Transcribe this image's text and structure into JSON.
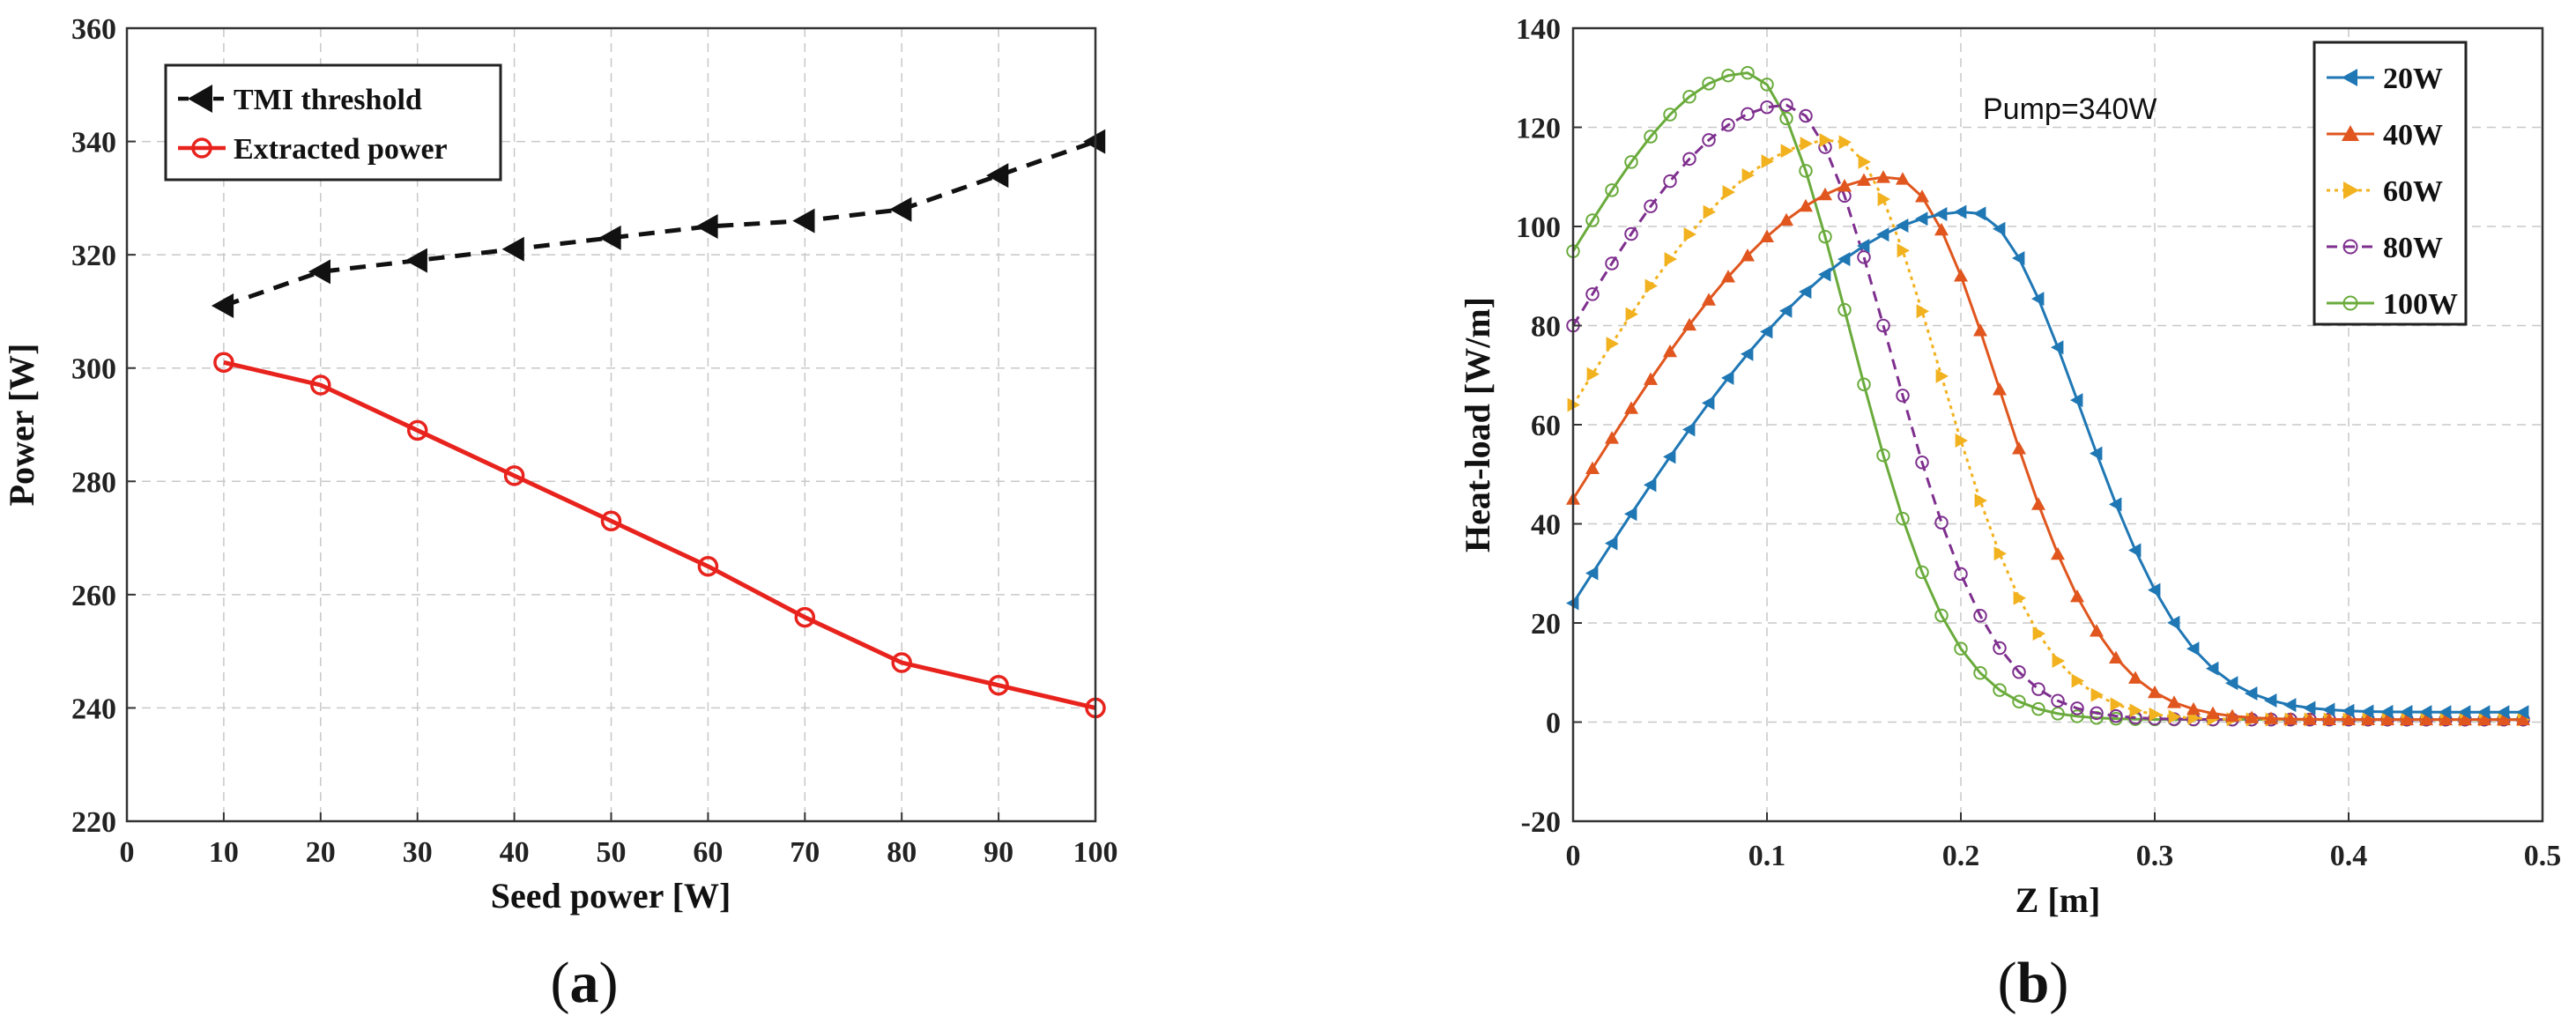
{
  "chart_data": [
    {
      "type": "line",
      "panel": "a",
      "xlabel": "Seed power [W]",
      "ylabel": "Power [W]",
      "xlim": [
        0,
        100
      ],
      "ylim": [
        220,
        360
      ],
      "xticks": [
        0,
        10,
        20,
        30,
        40,
        50,
        60,
        70,
        80,
        90,
        100
      ],
      "yticks": [
        220,
        240,
        260,
        280,
        300,
        320,
        340,
        360
      ],
      "grid": true,
      "legend_position": "top-left",
      "series": [
        {
          "name": "TMI threshold",
          "color": "#111111",
          "style": "dashed",
          "marker": "left-triangle",
          "x": [
            10,
            20,
            30,
            40,
            50,
            60,
            70,
            80,
            90,
            100
          ],
          "y": [
            311,
            317,
            319,
            321,
            323,
            325,
            326,
            328,
            334,
            340
          ]
        },
        {
          "name": "Extracted power",
          "color": "#e8231d",
          "style": "solid",
          "marker": "circle",
          "x": [
            10,
            20,
            30,
            40,
            50,
            60,
            70,
            80,
            90,
            100
          ],
          "y": [
            301,
            297,
            289,
            281,
            273,
            265,
            256,
            248,
            244,
            240
          ]
        }
      ]
    },
    {
      "type": "line",
      "panel": "b",
      "xlabel": "Z [m]",
      "ylabel": "Heat-load [W/m]",
      "xlim": [
        0,
        0.5
      ],
      "ylim": [
        -20,
        140
      ],
      "xticks": [
        "0",
        "0.1",
        "0.2",
        "0.3",
        "0.4",
        "0.5"
      ],
      "yticks": [
        -20,
        0,
        20,
        40,
        60,
        80,
        100,
        120,
        140
      ],
      "grid": true,
      "legend_position": "top-right",
      "annotation": "Pump=340W",
      "z_max": 0.49,
      "n_points": 50,
      "series": [
        {
          "name": "20W",
          "color": "#1f77b4",
          "marker": "left-triangle",
          "style": "solid",
          "z0": 24,
          "peak": 103,
          "peak_z": 0.205,
          "z_end": 2,
          "left_width": 0.15,
          "right_width": 0.08
        },
        {
          "name": "40W",
          "color": "#e0561e",
          "marker": "up-triangle",
          "style": "solid",
          "z0": 45,
          "peak": 110,
          "peak_z": 0.165,
          "z_end": 0.5,
          "left_width": 0.12,
          "right_width": 0.078
        },
        {
          "name": "60W",
          "color": "#f2b21f",
          "marker": "right-triangle",
          "style": "dotted",
          "z0": 64,
          "peak": 117.5,
          "peak_z": 0.135,
          "z_end": 0.5,
          "left_width": 0.1,
          "right_width": 0.076
        },
        {
          "name": "80W",
          "color": "#7e2f8e",
          "marker": "open-circle",
          "style": "dashed",
          "z0": 80,
          "peak": 124.5,
          "peak_z": 0.11,
          "z_end": 0.5,
          "left_width": 0.088,
          "right_width": 0.075
        },
        {
          "name": "100W",
          "color": "#6aab3c",
          "marker": "open-circle",
          "style": "solid",
          "z0": 95,
          "peak": 131,
          "peak_z": 0.09,
          "z_end": 0.5,
          "left_width": 0.078,
          "right_width": 0.074
        }
      ]
    }
  ],
  "panel_labels": {
    "a": "a",
    "b": "b"
  }
}
